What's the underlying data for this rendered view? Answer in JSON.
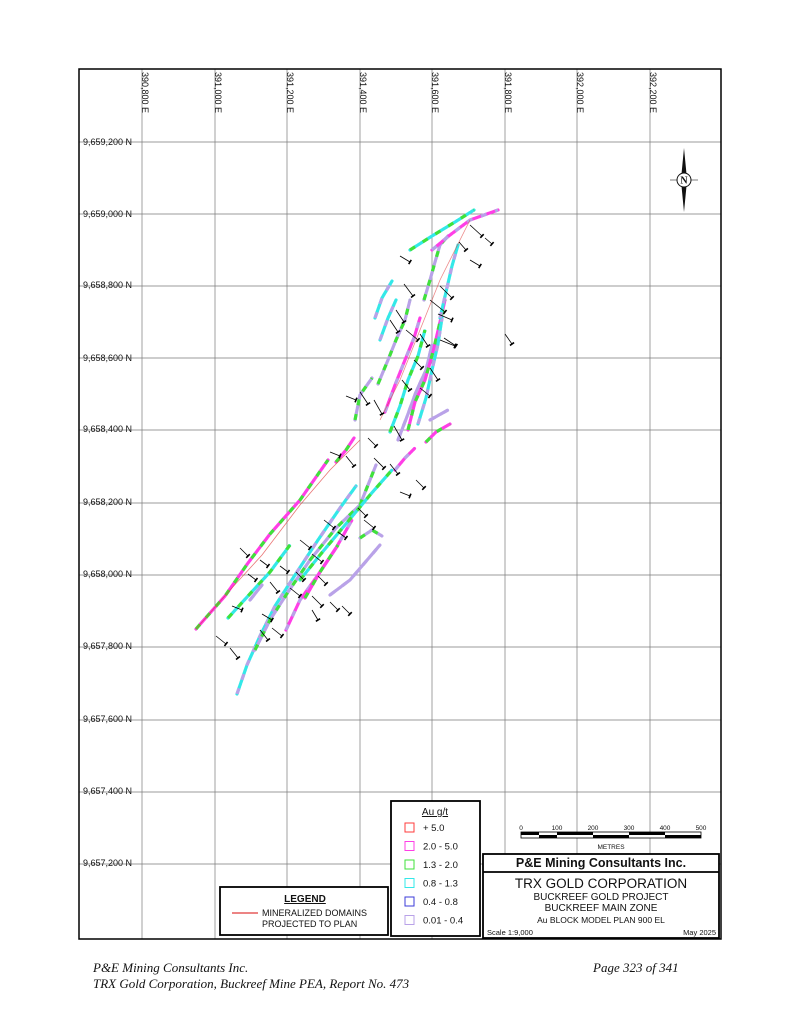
{
  "map": {
    "grid_x_labels": [
      "390,800 E",
      "391,000 E",
      "391,200 E",
      "391,400 E",
      "391,600 E",
      "391,800 E",
      "392,000 E",
      "392,200 E"
    ],
    "grid_y_labels": [
      "9,659,200 N",
      "9,659,000 N",
      "9,658,800 N",
      "9,658,600 N",
      "9,658,400 N",
      "9,658,200 N",
      "9,658,000 N",
      "9,657,800 N",
      "9,657,600 N",
      "9,657,400 N",
      "9,657,200 N"
    ],
    "north_arrow_letter": "N",
    "colors": {
      "grid": "#7a7a7a",
      "frame": "#000000",
      "plus_5": "#ff3b3b",
      "2_to_5": "#ff3ee6",
      "1_3_to_2": "#3fe23a",
      "0_8_to_1_3": "#33e8e8",
      "0_4_to_0_8": "#3b3bd8",
      "0_01_to_0_4": "#b9a2e8",
      "drillhole": "#000000"
    }
  },
  "au_legend": {
    "title": "Au g/t",
    "items": [
      {
        "label": "+ 5.0",
        "color": "#ff3b3b"
      },
      {
        "label": "2.0 - 5.0",
        "color": "#ff3ee6"
      },
      {
        "label": "1.3 - 2.0",
        "color": "#3fe23a"
      },
      {
        "label": "0.8 - 1.3",
        "color": "#33e8e8"
      },
      {
        "label": "0.4 - 0.8",
        "color": "#3b3bd8"
      },
      {
        "label": "0.01 - 0.4",
        "color": "#b9a2e8"
      }
    ]
  },
  "legend_box": {
    "title": "LEGEND",
    "item_line1": "MINERALIZED DOMAINS",
    "item_line2": "PROJECTED TO PLAN",
    "line_color": "#e03a3a"
  },
  "scale_bar": {
    "ticks": [
      "0",
      "100",
      "200",
      "300",
      "400",
      "500"
    ],
    "unit": "METRES"
  },
  "title_block": {
    "company": "P&E Mining Consultants Inc.",
    "client": "TRX GOLD CORPORATION",
    "project": "BUCKREEF GOLD PROJECT",
    "zone": "BUCKREEF MAIN ZONE",
    "plan": "Au BLOCK MODEL PLAN 900 EL",
    "scale": "Scale 1:9,000",
    "date": "May 2025"
  },
  "footer": {
    "left_line1": "P&E Mining Consultants Inc.",
    "left_line2": "TRX Gold Corporation, Buckreef Mine PEA, Report No. 473",
    "right": "Page 323 of 341"
  }
}
